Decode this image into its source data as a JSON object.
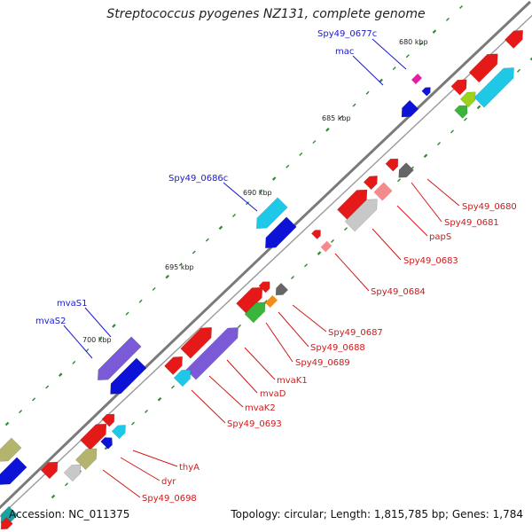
{
  "title": "Streptococcus pyogenes NZ131, complete genome",
  "footer": {
    "accession": "Accession: NC_011375",
    "summary": "Topology: circular; Length: 1,815,785 bp; Genes: 1,784"
  },
  "scale_labels": [
    "680 kbp",
    "685 kbp",
    "690 kbp",
    "695 kbp",
    "700 kbp"
  ],
  "outer_labels": [
    "Spy49_0677c",
    "mac",
    "Spy49_0686c",
    "mvaS1",
    "mvaS2"
  ],
  "inner_labels": [
    "Spy49_0680",
    "Spy49_0681",
    "papS",
    "Spy49_0683",
    "Spy49_0684",
    "Spy49_0687",
    "Spy49_0688",
    "Spy49_0689",
    "mvaK1",
    "mvaD",
    "mvaK2",
    "Spy49_0693",
    "thyA",
    "dyr",
    "Spy49_0698"
  ],
  "colors": {
    "backbone": "#7a7a7a",
    "tick": "#2f8a2f",
    "outer_label": "#1a1ad0",
    "inner_label": "#d21818",
    "gene_red": "#e61919",
    "gene_blue": "#0c12d6",
    "gene_cyan": "#1ec8e6",
    "gene_purple": "#7a5ad6",
    "gene_grey": "#666666",
    "gene_lightgrey": "#c8c8c8",
    "gene_green": "#3ab43a",
    "gene_lime": "#9ad21e",
    "gene_olive": "#b4b46e",
    "gene_magenta": "#e61ea0",
    "gene_orange": "#f08c1e",
    "gene_pink": "#f28c8c",
    "gene_teal": "#1aa0a0"
  }
}
